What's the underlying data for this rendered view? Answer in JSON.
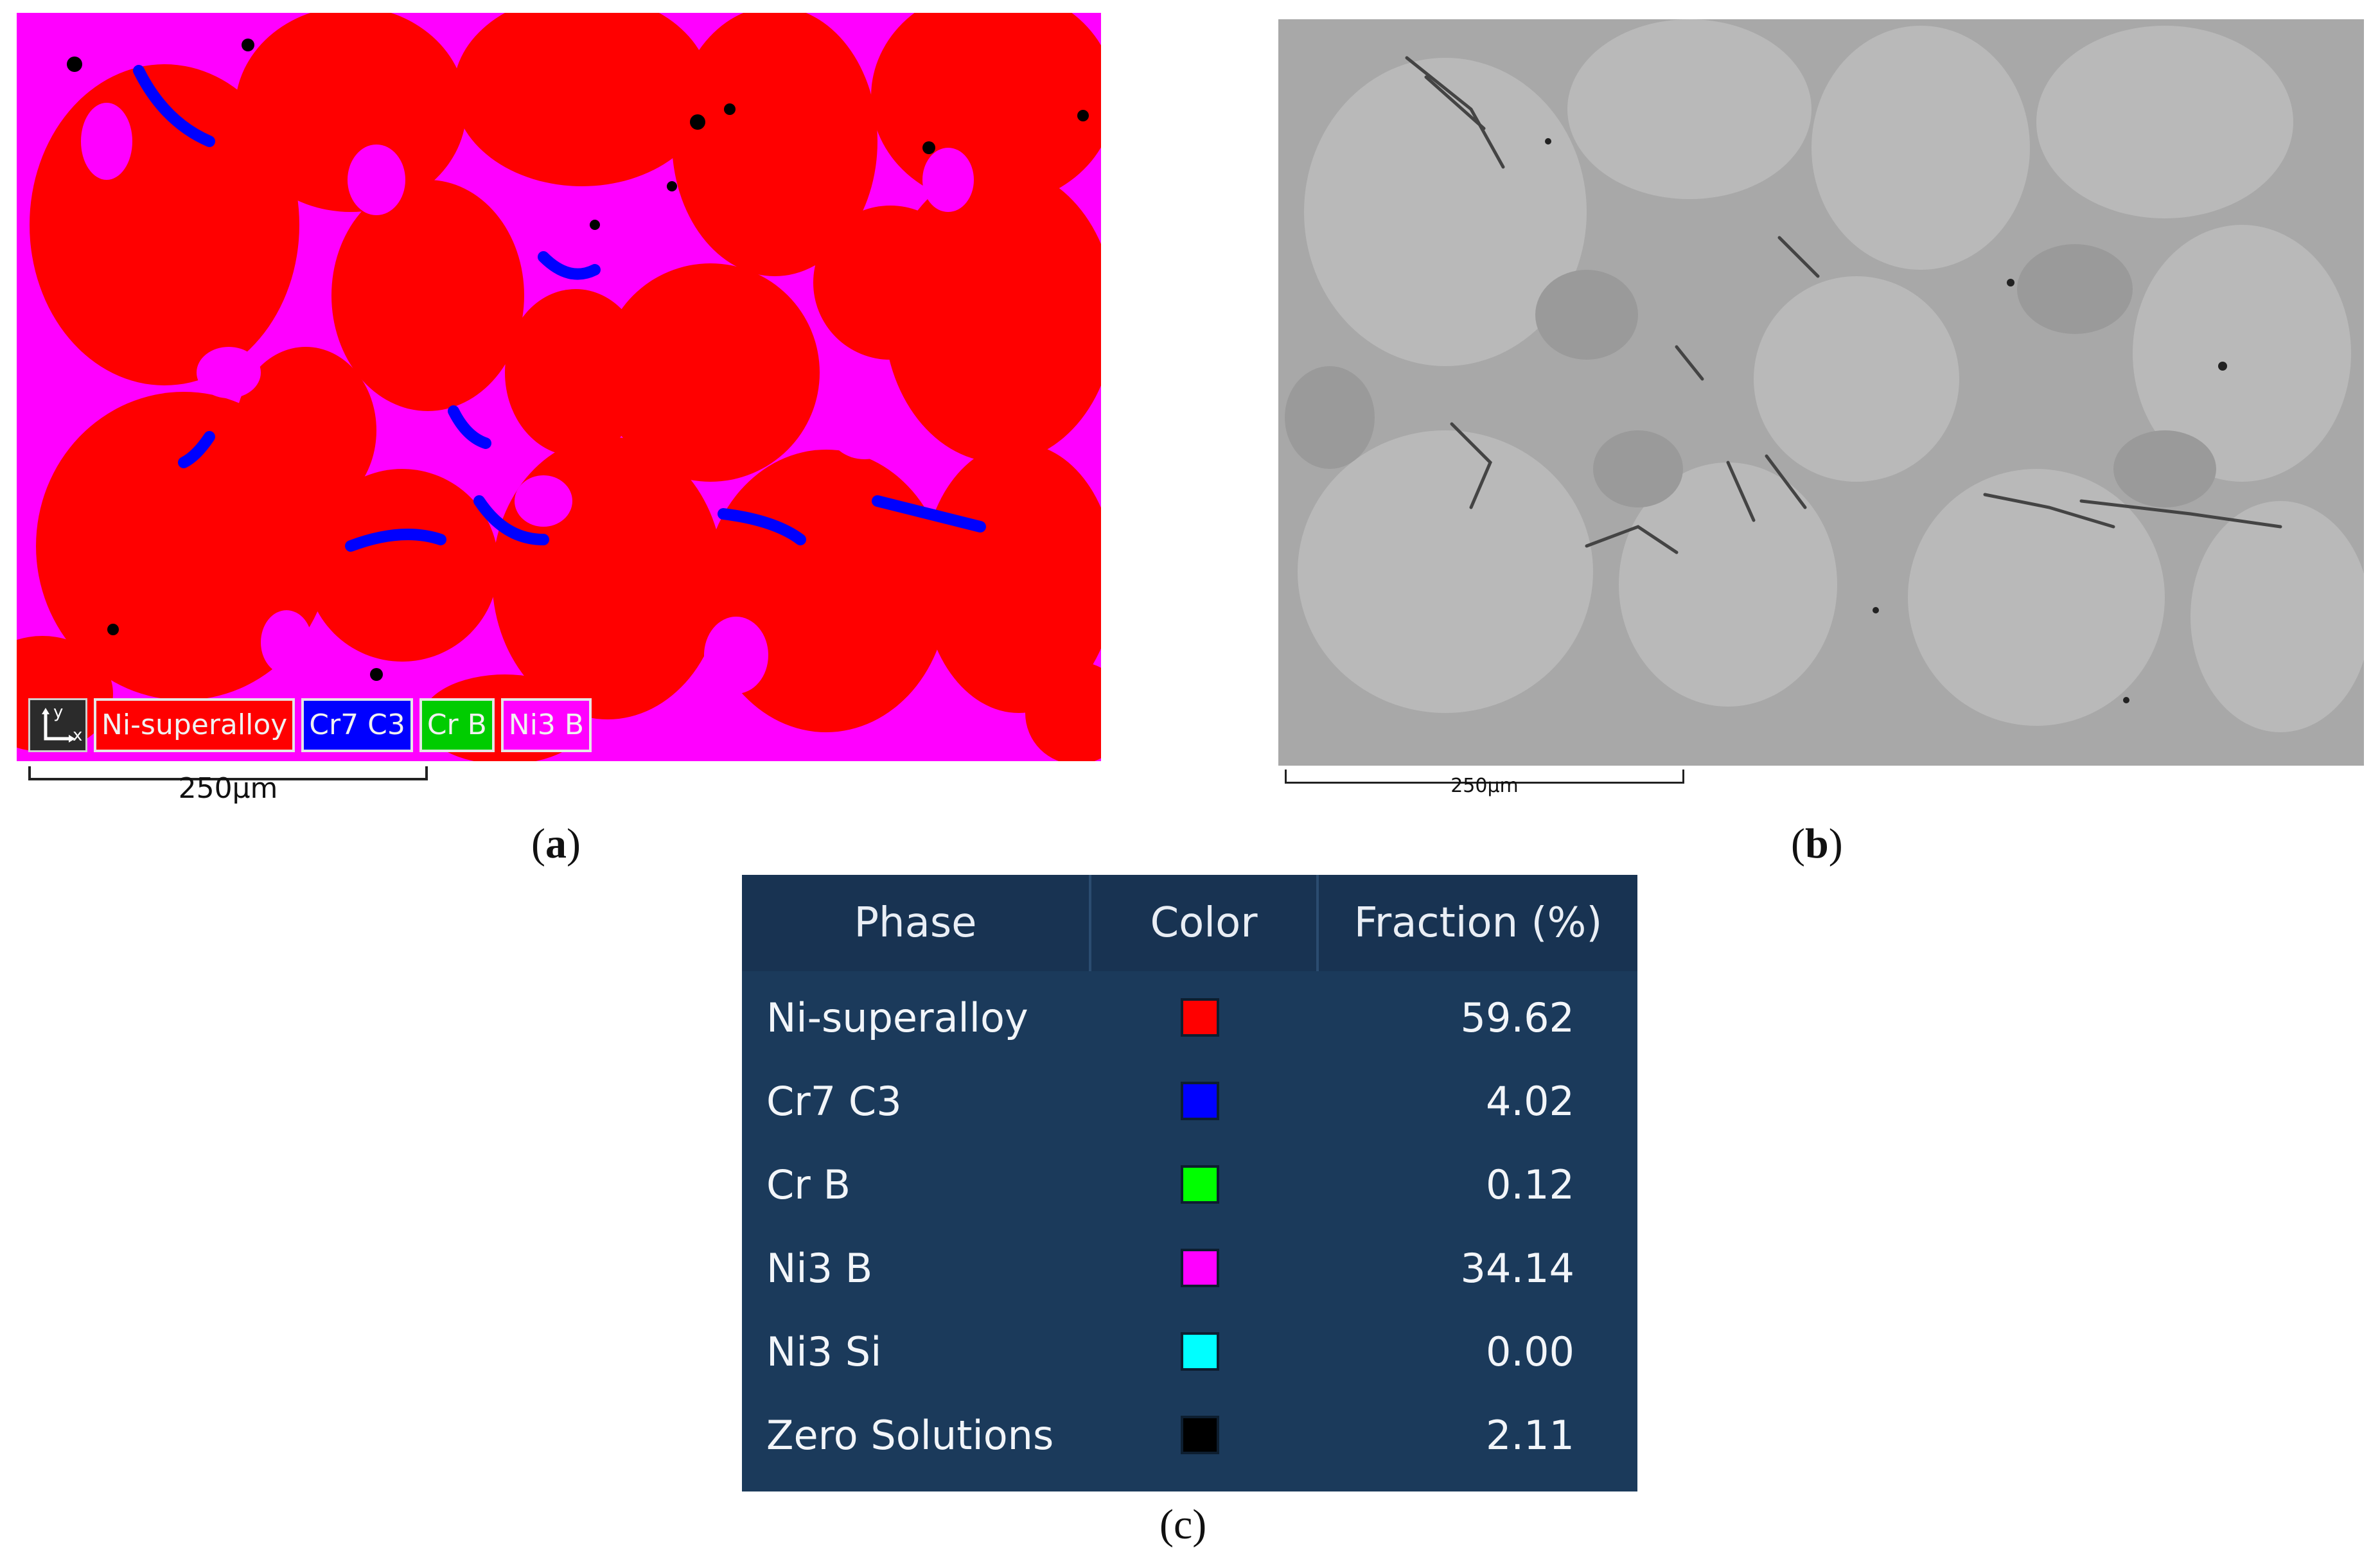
{
  "panel_a": {
    "legend": [
      {
        "label": "Ni-superalloy",
        "color": "#ff0000"
      },
      {
        "label": "Cr7 C3",
        "color": "#0000ff"
      },
      {
        "label": "Cr B",
        "color": "#00cc00"
      },
      {
        "label": "Ni3 B",
        "color": "#ff00ff"
      }
    ],
    "axis_labels": {
      "y": "y",
      "x": "x"
    },
    "scalebar": "250µm",
    "caption": {
      "open": "(",
      "letter": "a",
      "close": ")"
    }
  },
  "panel_b": {
    "scalebar": "250µm",
    "caption": {
      "open": "(",
      "letter": "b",
      "close": ")"
    }
  },
  "panel_c": {
    "caption": "(c)",
    "headers": [
      "Phase",
      "Color",
      "Fraction (%)"
    ],
    "rows": [
      {
        "phase": "Ni-superalloy",
        "color": "#ff0000",
        "fraction": "59.62"
      },
      {
        "phase": "Cr7 C3",
        "color": "#0000ff",
        "fraction": "4.02"
      },
      {
        "phase": "Cr B",
        "color": "#00ff00",
        "fraction": "0.12"
      },
      {
        "phase": "Ni3 B",
        "color": "#ff00ff",
        "fraction": "34.14"
      },
      {
        "phase": "Ni3 Si",
        "color": "#00ffff",
        "fraction": "0.00"
      },
      {
        "phase": "Zero Solutions",
        "color": "#000000",
        "fraction": "2.11"
      }
    ]
  }
}
